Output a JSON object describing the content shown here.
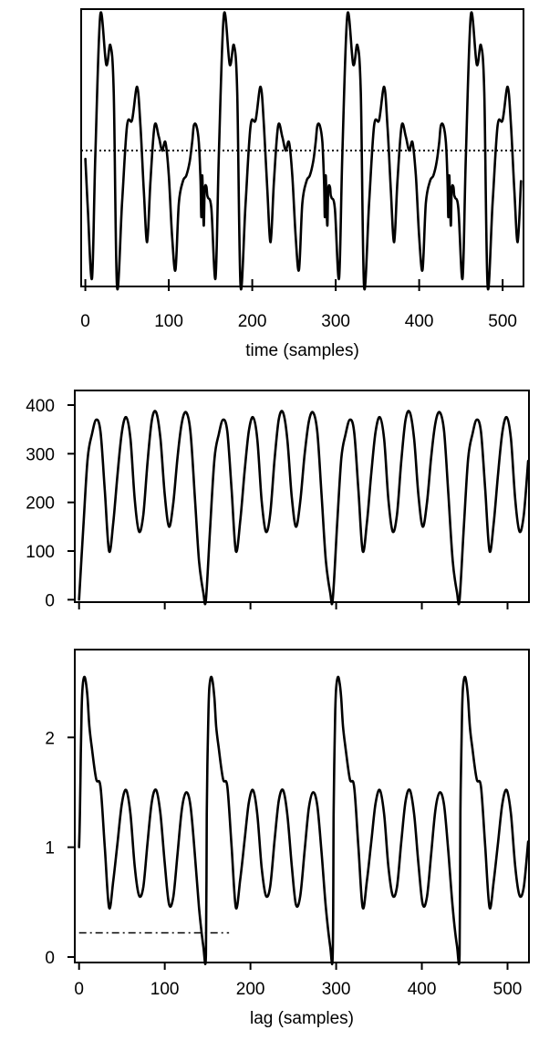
{
  "chart_data": [
    {
      "id": "waveform",
      "type": "line",
      "title": "",
      "xlabel": "time (samples)",
      "ylabel": "",
      "xlim": [
        -5,
        525
      ],
      "ylim": [
        0,
        1
      ],
      "xticks": [
        0,
        100,
        200,
        300,
        400,
        500
      ],
      "yticks": [],
      "grid": false,
      "period": 148,
      "series": [
        {
          "style": "solid",
          "x": [
            0,
            3,
            8,
            12,
            18,
            25,
            30,
            34,
            38,
            44,
            50,
            56,
            62,
            66,
            70,
            74,
            78,
            83,
            88,
            92,
            96,
            100,
            104,
            108,
            112,
            117,
            121,
            125,
            128,
            130,
            133,
            136,
            138,
            139,
            140,
            141,
            142,
            143,
            145,
            146,
            147
          ],
          "y": [
            0.46,
            0.28,
            0.03,
            0.48,
            0.98,
            0.8,
            0.87,
            0.7,
            0.0,
            0.3,
            0.58,
            0.6,
            0.72,
            0.58,
            0.35,
            0.16,
            0.38,
            0.58,
            0.54,
            0.49,
            0.52,
            0.4,
            0.18,
            0.06,
            0.3,
            0.38,
            0.4,
            0.45,
            0.52,
            0.58,
            0.58,
            0.52,
            0.38,
            0.25,
            0.4,
            0.3,
            0.22,
            0.35,
            0.36,
            0.33,
            0.32
          ]
        },
        {
          "style": "dotted",
          "x": [
            -5,
            525
          ],
          "y": [
            0.49,
            0.49
          ]
        }
      ]
    },
    {
      "id": "difference-function",
      "type": "line",
      "title": "",
      "xlabel": "",
      "ylabel": "",
      "xlim": [
        -5,
        525
      ],
      "ylim": [
        -5,
        430
      ],
      "xticks": [
        0,
        100,
        200,
        300,
        400,
        500
      ],
      "xtick_labels": [
        "",
        "",
        "",
        "",
        "",
        ""
      ],
      "yticks": [
        0,
        100,
        200,
        300,
        400
      ],
      "grid": false,
      "period": 148,
      "series": [
        {
          "style": "solid",
          "x": [
            0,
            5,
            10,
            15,
            20,
            25,
            30,
            35,
            40,
            45,
            50,
            55,
            60,
            65,
            70,
            75,
            80,
            85,
            90,
            95,
            100,
            105,
            110,
            115,
            120,
            125,
            130,
            135,
            140,
            145,
            148
          ],
          "y": [
            0,
            150,
            290,
            340,
            370,
            345,
            225,
            100,
            160,
            260,
            345,
            375,
            330,
            205,
            140,
            175,
            285,
            370,
            385,
            330,
            215,
            150,
            200,
            295,
            365,
            385,
            345,
            215,
            80,
            15,
            0
          ]
        }
      ]
    },
    {
      "id": "normalized-difference",
      "type": "line",
      "title": "",
      "xlabel": "lag (samples)",
      "ylabel": "",
      "xlim": [
        -5,
        525
      ],
      "ylim": [
        -0.05,
        2.8
      ],
      "xticks": [
        0,
        100,
        200,
        300,
        400,
        500
      ],
      "yticks": [
        0,
        1,
        2
      ],
      "grid": false,
      "period": 148,
      "series": [
        {
          "style": "solid",
          "x": [
            0,
            1,
            2,
            3,
            4,
            6,
            8,
            10,
            12,
            15,
            20,
            25,
            30,
            35,
            40,
            45,
            50,
            55,
            60,
            65,
            70,
            75,
            80,
            85,
            90,
            95,
            100,
            105,
            110,
            115,
            120,
            125,
            130,
            135,
            140,
            145,
            148
          ],
          "y": [
            1.0,
            1.3,
            1.85,
            2.25,
            2.45,
            2.55,
            2.5,
            2.35,
            2.1,
            1.9,
            1.62,
            1.55,
            1.0,
            0.45,
            0.7,
            1.05,
            1.4,
            1.52,
            1.3,
            0.82,
            0.56,
            0.64,
            1.05,
            1.42,
            1.52,
            1.3,
            0.85,
            0.48,
            0.55,
            0.95,
            1.35,
            1.5,
            1.38,
            0.95,
            0.45,
            0.1,
            0.02
          ]
        },
        {
          "style": "dashdot",
          "x": [
            0,
            175
          ],
          "y": [
            0.22,
            0.22
          ]
        }
      ]
    }
  ]
}
